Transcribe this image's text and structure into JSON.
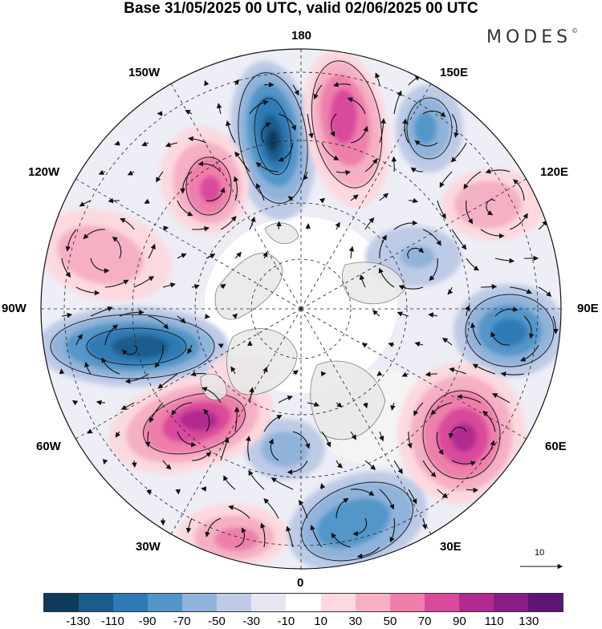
{
  "title": "Base 31/05/2025 00 UTC, valid 02/06/2025 00 UTC",
  "brand": "MODES",
  "brand_mark": "©",
  "longitude_labels": {
    "lon_180": "180",
    "lon_150e": "150E",
    "lon_120e": "120E",
    "lon_90e": "90E",
    "lon_60e": "60E",
    "lon_30e": "30E",
    "lon_0": "0",
    "lon_30w": "30W",
    "lon_60w": "60W",
    "lon_90w": "90W",
    "lon_120w": "120W",
    "lon_150w": "150W"
  },
  "vector_scale_label": "10",
  "colorbar": {
    "colors": [
      "#0e3a5c",
      "#1a5c8c",
      "#2d7ab5",
      "#5296c8",
      "#8fb3da",
      "#bdcbe6",
      "#e6e6f2",
      "#ffffff",
      "#fbd9df",
      "#f5b0c4",
      "#ee7fab",
      "#d94a9c",
      "#b12a8f",
      "#8a1c86",
      "#5e1475"
    ],
    "tick_labels": [
      "-130",
      "-110",
      "-90",
      "-70",
      "-50",
      "-30",
      "-10",
      "10",
      "30",
      "50",
      "70",
      "90",
      "110",
      "130"
    ]
  },
  "map_colors": {
    "land_outline": "#6b6b6b",
    "land_fill": "#e8e8e8",
    "grid": "#222222",
    "vector": "#111111"
  }
}
